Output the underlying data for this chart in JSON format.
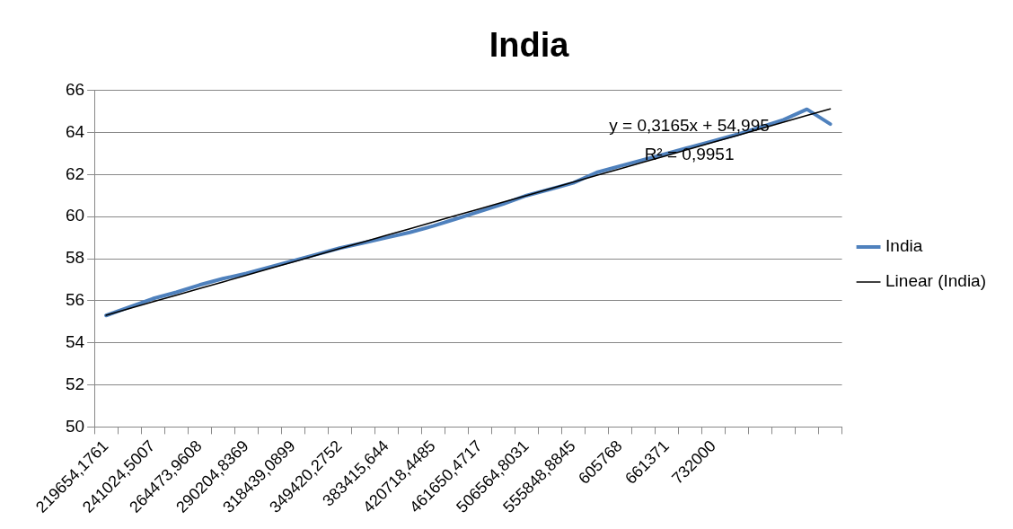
{
  "chart_data": {
    "type": "line",
    "title": "India",
    "categories": [
      "219654,1761",
      null,
      "241024,5007",
      null,
      "264473,9608",
      null,
      "290204,8369",
      null,
      "318439,0899",
      null,
      "349420,2752",
      null,
      "383415,644",
      null,
      "420718,4485",
      null,
      "461650,4717",
      null,
      "506564,8031",
      null,
      "555848,8845",
      null,
      "605768",
      null,
      "661371",
      null,
      "732000",
      null,
      null,
      null,
      null,
      null
    ],
    "series": [
      {
        "name": "India",
        "color": "#4f81bd",
        "values": [
          55.3,
          55.7,
          56.1,
          56.4,
          56.75,
          57.05,
          57.3,
          57.6,
          57.9,
          58.2,
          58.5,
          58.75,
          59.0,
          59.25,
          59.55,
          59.9,
          60.25,
          60.6,
          61.0,
          61.3,
          61.6,
          62.1,
          62.4,
          62.7,
          63.0,
          63.3,
          63.6,
          63.9,
          64.25,
          64.6,
          65.1,
          64.4
        ]
      },
      {
        "name": "Linear (India)",
        "color": "#000000",
        "values": [
          55.31,
          55.63,
          55.95,
          56.26,
          56.58,
          56.89,
          57.21,
          57.53,
          57.84,
          58.16,
          58.48,
          58.79,
          59.11,
          59.42,
          59.74,
          60.06,
          60.37,
          60.69,
          61.0,
          61.32,
          61.64,
          61.96,
          62.27,
          62.59,
          62.9,
          63.22,
          63.54,
          63.85,
          64.17,
          64.49,
          64.81,
          65.12
        ]
      }
    ],
    "ylim": [
      50,
      66
    ],
    "yticks": [
      50,
      52,
      54,
      56,
      58,
      60,
      62,
      64,
      66
    ],
    "grid": "y",
    "legend": "right",
    "marker": "none",
    "line_style": "solid",
    "annotations": [
      "y = 0,3165x + 54,995",
      "R² = 0,9951"
    ]
  }
}
